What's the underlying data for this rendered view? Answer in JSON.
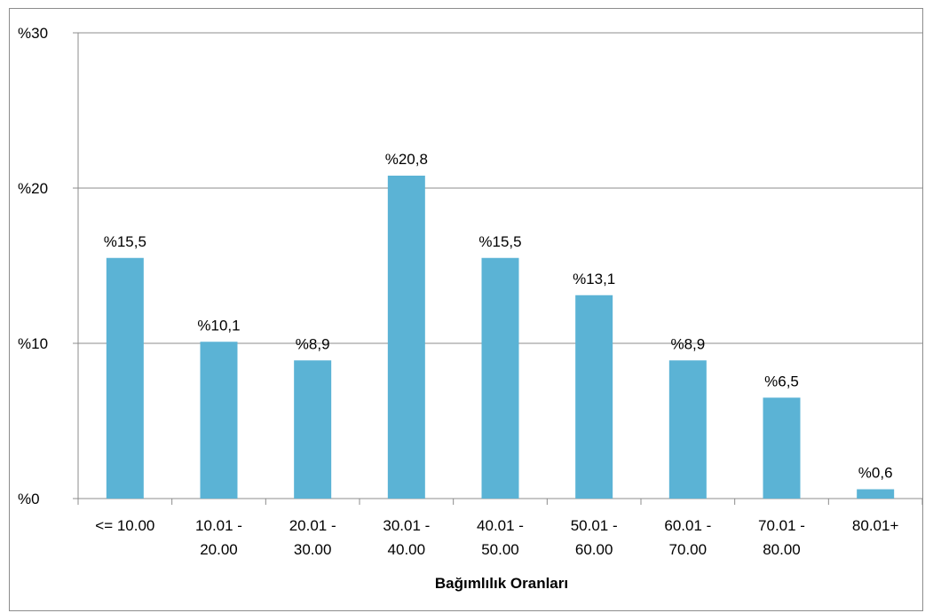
{
  "chart_data": {
    "type": "bar",
    "title": "",
    "xlabel": "Bağımlılık Oranları",
    "ylabel": "",
    "categories": [
      [
        "<= 10.00"
      ],
      [
        "10.01 -",
        "20.00"
      ],
      [
        "20.01 -",
        "30.00"
      ],
      [
        "30.01 -",
        "40.00"
      ],
      [
        "40.01 -",
        "50.00"
      ],
      [
        "50.01 -",
        "60.00"
      ],
      [
        "60.01 -",
        "70.00"
      ],
      [
        "70.01 -",
        "80.00"
      ],
      [
        "80.01+"
      ]
    ],
    "values": [
      15.5,
      10.1,
      8.9,
      20.8,
      15.5,
      13.1,
      8.9,
      6.5,
      0.6
    ],
    "data_labels": [
      "%15,5",
      "%10,1",
      "%8,9",
      "%20,8",
      "%15,5",
      "%13,1",
      "%8,9",
      "%6,5",
      "%0,6"
    ],
    "ylim": [
      0,
      30
    ],
    "yticks": [
      0,
      10,
      20,
      30
    ],
    "ytick_labels": [
      "%0",
      "%10",
      "%20",
      "%30"
    ],
    "grid": true,
    "legend": "none",
    "bar_color": "#5bb3d5",
    "grid_color": "#8c8c8c"
  }
}
